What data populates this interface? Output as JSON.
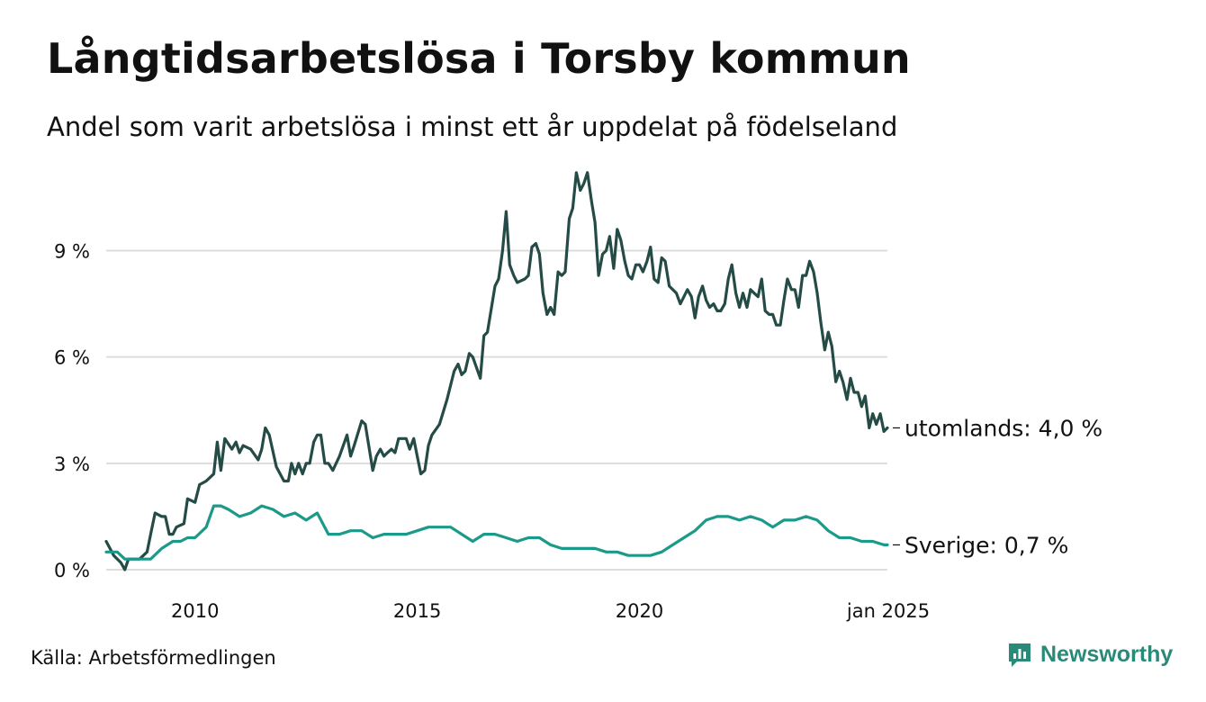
{
  "header": {
    "title": "Långtidsarbetslösa i Torsby kommun",
    "subtitle": "Andel som varit arbetslösa i minst ett år uppdelat på födelseland"
  },
  "footer": {
    "source": "Källa: Arbetsförmedlingen",
    "brand": "Newsworthy"
  },
  "colors": {
    "utomlands": "#244b45",
    "sverige": "#1b9a8a",
    "grid": "#dddddd",
    "brand": "#2a8a79"
  },
  "chart_data": {
    "type": "line",
    "title": "Långtidsarbetslösa i Torsby kommun",
    "subtitle": "Andel som varit arbetslösa i minst ett år uppdelat på födelseland",
    "xlabel": "",
    "ylabel": "",
    "x_range": [
      2008.0,
      2025.0
    ],
    "ylim": [
      0,
      11.5
    ],
    "yticks": [
      0,
      3,
      6,
      9
    ],
    "ytick_labels": [
      "0 %",
      "3 %",
      "6 %",
      "9 %"
    ],
    "xticks": [
      2010,
      2015,
      2020,
      2025
    ],
    "xtick_labels": [
      "2010",
      "2015",
      "2020",
      "jan 2025"
    ],
    "grid": true,
    "series": [
      {
        "name": "utomlands",
        "end_label": "utomlands: 4,0 %",
        "color": "#244b45",
        "points": [
          [
            2008.0,
            0.8
          ],
          [
            2008.17,
            0.4
          ],
          [
            2008.33,
            0.2
          ],
          [
            2008.42,
            0.0
          ],
          [
            2008.5,
            0.3
          ],
          [
            2008.75,
            0.3
          ],
          [
            2008.92,
            0.5
          ],
          [
            2009.0,
            1.0
          ],
          [
            2009.1,
            1.6
          ],
          [
            2009.25,
            1.5
          ],
          [
            2009.33,
            1.5
          ],
          [
            2009.42,
            1.0
          ],
          [
            2009.5,
            1.0
          ],
          [
            2009.58,
            1.2
          ],
          [
            2009.75,
            1.3
          ],
          [
            2009.83,
            2.0
          ],
          [
            2010.0,
            1.9
          ],
          [
            2010.1,
            2.4
          ],
          [
            2010.25,
            2.5
          ],
          [
            2010.42,
            2.7
          ],
          [
            2010.5,
            3.6
          ],
          [
            2010.58,
            2.8
          ],
          [
            2010.67,
            3.7
          ],
          [
            2010.83,
            3.4
          ],
          [
            2010.92,
            3.6
          ],
          [
            2011.0,
            3.3
          ],
          [
            2011.08,
            3.5
          ],
          [
            2011.25,
            3.4
          ],
          [
            2011.42,
            3.1
          ],
          [
            2011.5,
            3.4
          ],
          [
            2011.58,
            4.0
          ],
          [
            2011.67,
            3.8
          ],
          [
            2011.83,
            2.9
          ],
          [
            2012.0,
            2.5
          ],
          [
            2012.1,
            2.5
          ],
          [
            2012.17,
            3.0
          ],
          [
            2012.25,
            2.7
          ],
          [
            2012.33,
            3.0
          ],
          [
            2012.42,
            2.7
          ],
          [
            2012.5,
            3.0
          ],
          [
            2012.58,
            3.0
          ],
          [
            2012.67,
            3.6
          ],
          [
            2012.75,
            3.8
          ],
          [
            2012.83,
            3.8
          ],
          [
            2012.92,
            3.0
          ],
          [
            2013.0,
            3.0
          ],
          [
            2013.1,
            2.8
          ],
          [
            2013.25,
            3.2
          ],
          [
            2013.42,
            3.8
          ],
          [
            2013.5,
            3.2
          ],
          [
            2013.58,
            3.5
          ],
          [
            2013.75,
            4.2
          ],
          [
            2013.83,
            4.1
          ],
          [
            2014.0,
            2.8
          ],
          [
            2014.08,
            3.2
          ],
          [
            2014.17,
            3.4
          ],
          [
            2014.25,
            3.2
          ],
          [
            2014.33,
            3.3
          ],
          [
            2014.42,
            3.4
          ],
          [
            2014.5,
            3.3
          ],
          [
            2014.58,
            3.7
          ],
          [
            2014.67,
            3.7
          ],
          [
            2014.75,
            3.7
          ],
          [
            2014.83,
            3.4
          ],
          [
            2014.92,
            3.7
          ],
          [
            2015.0,
            3.2
          ],
          [
            2015.08,
            2.7
          ],
          [
            2015.17,
            2.8
          ],
          [
            2015.25,
            3.5
          ],
          [
            2015.33,
            3.8
          ],
          [
            2015.5,
            4.1
          ],
          [
            2015.67,
            4.8
          ],
          [
            2015.83,
            5.6
          ],
          [
            2015.92,
            5.8
          ],
          [
            2016.0,
            5.5
          ],
          [
            2016.08,
            5.6
          ],
          [
            2016.17,
            6.1
          ],
          [
            2016.25,
            6.0
          ],
          [
            2016.42,
            5.4
          ],
          [
            2016.5,
            6.6
          ],
          [
            2016.58,
            6.7
          ],
          [
            2016.75,
            8.0
          ],
          [
            2016.83,
            8.2
          ],
          [
            2016.92,
            9.0
          ],
          [
            2017.0,
            10.1
          ],
          [
            2017.08,
            8.6
          ],
          [
            2017.17,
            8.3
          ],
          [
            2017.25,
            8.1
          ],
          [
            2017.42,
            8.2
          ],
          [
            2017.5,
            8.3
          ],
          [
            2017.58,
            9.1
          ],
          [
            2017.67,
            9.2
          ],
          [
            2017.75,
            8.9
          ],
          [
            2017.83,
            7.8
          ],
          [
            2017.92,
            7.2
          ],
          [
            2018.0,
            7.4
          ],
          [
            2018.08,
            7.2
          ],
          [
            2018.17,
            8.4
          ],
          [
            2018.25,
            8.3
          ],
          [
            2018.33,
            8.4
          ],
          [
            2018.42,
            9.9
          ],
          [
            2018.5,
            10.2
          ],
          [
            2018.58,
            11.2
          ],
          [
            2018.67,
            10.7
          ],
          [
            2018.75,
            10.9
          ],
          [
            2018.83,
            11.2
          ],
          [
            2018.92,
            10.4
          ],
          [
            2019.0,
            9.8
          ],
          [
            2019.08,
            8.3
          ],
          [
            2019.17,
            8.9
          ],
          [
            2019.25,
            9.0
          ],
          [
            2019.33,
            9.4
          ],
          [
            2019.42,
            8.5
          ],
          [
            2019.5,
            9.6
          ],
          [
            2019.58,
            9.3
          ],
          [
            2019.67,
            8.7
          ],
          [
            2019.75,
            8.3
          ],
          [
            2019.83,
            8.2
          ],
          [
            2019.92,
            8.6
          ],
          [
            2020.0,
            8.6
          ],
          [
            2020.08,
            8.4
          ],
          [
            2020.17,
            8.7
          ],
          [
            2020.25,
            9.1
          ],
          [
            2020.33,
            8.2
          ],
          [
            2020.42,
            8.1
          ],
          [
            2020.5,
            8.8
          ],
          [
            2020.58,
            8.7
          ],
          [
            2020.67,
            8.0
          ],
          [
            2020.75,
            7.9
          ],
          [
            2020.83,
            7.8
          ],
          [
            2020.92,
            7.5
          ],
          [
            2021.0,
            7.7
          ],
          [
            2021.08,
            7.9
          ],
          [
            2021.17,
            7.7
          ],
          [
            2021.25,
            7.1
          ],
          [
            2021.33,
            7.7
          ],
          [
            2021.42,
            8.0
          ],
          [
            2021.5,
            7.6
          ],
          [
            2021.58,
            7.4
          ],
          [
            2021.67,
            7.5
          ],
          [
            2021.75,
            7.3
          ],
          [
            2021.83,
            7.3
          ],
          [
            2021.92,
            7.5
          ],
          [
            2022.0,
            8.2
          ],
          [
            2022.08,
            8.6
          ],
          [
            2022.17,
            7.8
          ],
          [
            2022.25,
            7.4
          ],
          [
            2022.33,
            7.8
          ],
          [
            2022.42,
            7.4
          ],
          [
            2022.5,
            7.9
          ],
          [
            2022.58,
            7.8
          ],
          [
            2022.67,
            7.7
          ],
          [
            2022.75,
            8.2
          ],
          [
            2022.83,
            7.3
          ],
          [
            2022.92,
            7.2
          ],
          [
            2023.0,
            7.2
          ],
          [
            2023.08,
            6.9
          ],
          [
            2023.17,
            6.9
          ],
          [
            2023.25,
            7.6
          ],
          [
            2023.33,
            8.2
          ],
          [
            2023.42,
            7.9
          ],
          [
            2023.5,
            7.9
          ],
          [
            2023.58,
            7.4
          ],
          [
            2023.67,
            8.3
          ],
          [
            2023.75,
            8.3
          ],
          [
            2023.83,
            8.7
          ],
          [
            2023.92,
            8.4
          ],
          [
            2024.0,
            7.8
          ],
          [
            2024.08,
            7.0
          ],
          [
            2024.17,
            6.2
          ],
          [
            2024.25,
            6.7
          ],
          [
            2024.33,
            6.3
          ],
          [
            2024.42,
            5.3
          ],
          [
            2024.5,
            5.6
          ],
          [
            2024.58,
            5.3
          ],
          [
            2024.67,
            4.8
          ],
          [
            2024.75,
            5.4
          ],
          [
            2024.83,
            5.0
          ],
          [
            2024.92,
            5.0
          ],
          [
            2025.0,
            4.6
          ],
          [
            2025.08,
            4.9
          ],
          [
            2025.17,
            4.0
          ],
          [
            2025.25,
            4.4
          ],
          [
            2025.33,
            4.1
          ],
          [
            2025.42,
            4.4
          ],
          [
            2025.5,
            3.9
          ],
          [
            2025.58,
            4.0
          ]
        ]
      },
      {
        "name": "Sverige",
        "end_label": "Sverige: 0,7 %",
        "color": "#1b9a8a",
        "points": [
          [
            2008.0,
            0.5
          ],
          [
            2008.25,
            0.5
          ],
          [
            2008.42,
            0.3
          ],
          [
            2008.75,
            0.3
          ],
          [
            2009.0,
            0.3
          ],
          [
            2009.25,
            0.6
          ],
          [
            2009.5,
            0.8
          ],
          [
            2009.67,
            0.8
          ],
          [
            2009.83,
            0.9
          ],
          [
            2010.0,
            0.9
          ],
          [
            2010.25,
            1.2
          ],
          [
            2010.42,
            1.8
          ],
          [
            2010.58,
            1.8
          ],
          [
            2010.75,
            1.7
          ],
          [
            2011.0,
            1.5
          ],
          [
            2011.25,
            1.6
          ],
          [
            2011.5,
            1.8
          ],
          [
            2011.75,
            1.7
          ],
          [
            2012.0,
            1.5
          ],
          [
            2012.25,
            1.6
          ],
          [
            2012.5,
            1.4
          ],
          [
            2012.75,
            1.6
          ],
          [
            2013.0,
            1.0
          ],
          [
            2013.25,
            1.0
          ],
          [
            2013.5,
            1.1
          ],
          [
            2013.75,
            1.1
          ],
          [
            2014.0,
            0.9
          ],
          [
            2014.25,
            1.0
          ],
          [
            2014.5,
            1.0
          ],
          [
            2014.75,
            1.0
          ],
          [
            2015.0,
            1.1
          ],
          [
            2015.25,
            1.2
          ],
          [
            2015.5,
            1.2
          ],
          [
            2015.75,
            1.2
          ],
          [
            2016.0,
            1.0
          ],
          [
            2016.25,
            0.8
          ],
          [
            2016.5,
            1.0
          ],
          [
            2016.75,
            1.0
          ],
          [
            2017.0,
            0.9
          ],
          [
            2017.25,
            0.8
          ],
          [
            2017.5,
            0.9
          ],
          [
            2017.75,
            0.9
          ],
          [
            2018.0,
            0.7
          ],
          [
            2018.25,
            0.6
          ],
          [
            2018.5,
            0.6
          ],
          [
            2018.75,
            0.6
          ],
          [
            2019.0,
            0.6
          ],
          [
            2019.25,
            0.5
          ],
          [
            2019.5,
            0.5
          ],
          [
            2019.75,
            0.4
          ],
          [
            2020.0,
            0.4
          ],
          [
            2020.25,
            0.4
          ],
          [
            2020.5,
            0.5
          ],
          [
            2020.75,
            0.7
          ],
          [
            2021.0,
            0.9
          ],
          [
            2021.25,
            1.1
          ],
          [
            2021.5,
            1.4
          ],
          [
            2021.75,
            1.5
          ],
          [
            2022.0,
            1.5
          ],
          [
            2022.25,
            1.4
          ],
          [
            2022.5,
            1.5
          ],
          [
            2022.75,
            1.4
          ],
          [
            2023.0,
            1.2
          ],
          [
            2023.25,
            1.4
          ],
          [
            2023.5,
            1.4
          ],
          [
            2023.75,
            1.5
          ],
          [
            2024.0,
            1.4
          ],
          [
            2024.25,
            1.1
          ],
          [
            2024.5,
            0.9
          ],
          [
            2024.75,
            0.9
          ],
          [
            2025.0,
            0.8
          ],
          [
            2025.25,
            0.8
          ],
          [
            2025.5,
            0.7
          ],
          [
            2025.58,
            0.7
          ]
        ]
      }
    ]
  }
}
